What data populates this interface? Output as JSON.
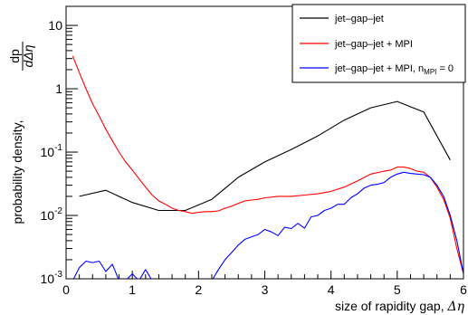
{
  "chart_data": {
    "type": "line",
    "xlabel_main": "size of rapidity gap, ",
    "xlabel_symbol": "Δη",
    "ylabel_main": "probability density, ",
    "ylabel_frac_num": "dp",
    "ylabel_frac_den": "dΔη",
    "xlim": [
      0,
      6
    ],
    "ylim": [
      0.001,
      20
    ],
    "yscale": "log",
    "x_ticks": [
      "0",
      "1",
      "2",
      "3",
      "4",
      "5",
      "6"
    ],
    "y_ticks": [
      {
        "base": "10",
        "exp": "-3",
        "value": 0.001
      },
      {
        "base": "10",
        "exp": "-2",
        "value": 0.01
      },
      {
        "base": "10",
        "exp": "-1",
        "value": 0.1
      },
      {
        "base": "1",
        "exp": "",
        "value": 1
      },
      {
        "base": "10",
        "exp": "",
        "value": 10
      }
    ],
    "grid": false,
    "legend_position": "top-right",
    "series": [
      {
        "name": "jet–gap–jet",
        "color": "#000000",
        "x": [
          0.2,
          0.6,
          1.0,
          1.4,
          1.8,
          2.2,
          2.6,
          3.0,
          3.4,
          3.8,
          4.2,
          4.6,
          5.0,
          5.4,
          5.8
        ],
        "y": [
          0.02,
          0.025,
          0.016,
          0.012,
          0.012,
          0.018,
          0.04,
          0.07,
          0.11,
          0.18,
          0.32,
          0.5,
          0.63,
          0.43,
          0.075
        ]
      },
      {
        "name": "jet–gap–jet + MPI",
        "color": "#ff0000",
        "x": [
          0.1,
          0.2,
          0.3,
          0.4,
          0.5,
          0.6,
          0.7,
          0.8,
          0.9,
          1.0,
          1.1,
          1.2,
          1.3,
          1.4,
          1.5,
          1.6,
          1.7,
          1.8,
          1.9,
          2.0,
          2.1,
          2.2,
          2.3,
          2.4,
          2.5,
          2.6,
          2.7,
          2.8,
          2.9,
          3.0,
          3.2,
          3.4,
          3.6,
          3.8,
          4.0,
          4.2,
          4.4,
          4.6,
          4.8,
          4.9,
          5.0,
          5.1,
          5.2,
          5.3,
          5.4,
          5.5,
          5.6,
          5.7,
          5.8,
          5.9,
          6.0
        ],
        "y": [
          3.3,
          1.8,
          1.0,
          0.58,
          0.37,
          0.23,
          0.15,
          0.1,
          0.07,
          0.052,
          0.038,
          0.028,
          0.021,
          0.017,
          0.015,
          0.013,
          0.012,
          0.0115,
          0.0108,
          0.0112,
          0.0115,
          0.0115,
          0.0118,
          0.013,
          0.014,
          0.0155,
          0.017,
          0.0175,
          0.018,
          0.019,
          0.02,
          0.02,
          0.021,
          0.022,
          0.024,
          0.028,
          0.035,
          0.045,
          0.05,
          0.052,
          0.058,
          0.058,
          0.055,
          0.05,
          0.048,
          0.04,
          0.028,
          0.018,
          0.009,
          0.003,
          0.0012
        ]
      },
      {
        "name": "jet–gap–jet + MPI, n",
        "name_sub": "MPI",
        "name_tail": " = 0",
        "color": "#0000ff",
        "x": [
          0.1,
          0.2,
          0.3,
          0.4,
          0.5,
          0.6,
          0.7,
          0.8,
          0.9,
          1.0,
          1.1,
          1.2,
          1.3,
          1.4,
          1.5,
          1.6,
          1.7,
          1.8,
          1.9,
          2.0,
          2.1,
          2.2,
          2.3,
          2.4,
          2.5,
          2.6,
          2.7,
          2.8,
          2.9,
          3.0,
          3.1,
          3.2,
          3.3,
          3.4,
          3.5,
          3.6,
          3.7,
          3.8,
          3.9,
          4.0,
          4.1,
          4.2,
          4.3,
          4.4,
          4.5,
          4.6,
          4.7,
          4.8,
          4.9,
          5.0,
          5.1,
          5.2,
          5.3,
          5.4,
          5.5,
          5.6,
          5.7,
          5.8,
          5.9,
          6.0
        ],
        "y": [
          0.0008,
          0.0015,
          0.0019,
          0.0018,
          0.0019,
          0.0013,
          0.0017,
          0.0009,
          0.0009,
          0.0012,
          0.0007,
          0.0014,
          0.0009,
          0.0008,
          0.0008,
          0.0009,
          0.0007,
          0.0008,
          0.0007,
          0.0007,
          0.0008,
          0.0009,
          0.0014,
          0.002,
          0.0026,
          0.0034,
          0.0042,
          0.0046,
          0.005,
          0.006,
          0.0055,
          0.0048,
          0.0065,
          0.0062,
          0.0075,
          0.0063,
          0.0095,
          0.01,
          0.012,
          0.013,
          0.015,
          0.015,
          0.019,
          0.022,
          0.027,
          0.03,
          0.031,
          0.033,
          0.04,
          0.045,
          0.048,
          0.046,
          0.045,
          0.044,
          0.04,
          0.03,
          0.02,
          0.01,
          0.004,
          0.0012
        ]
      }
    ]
  }
}
